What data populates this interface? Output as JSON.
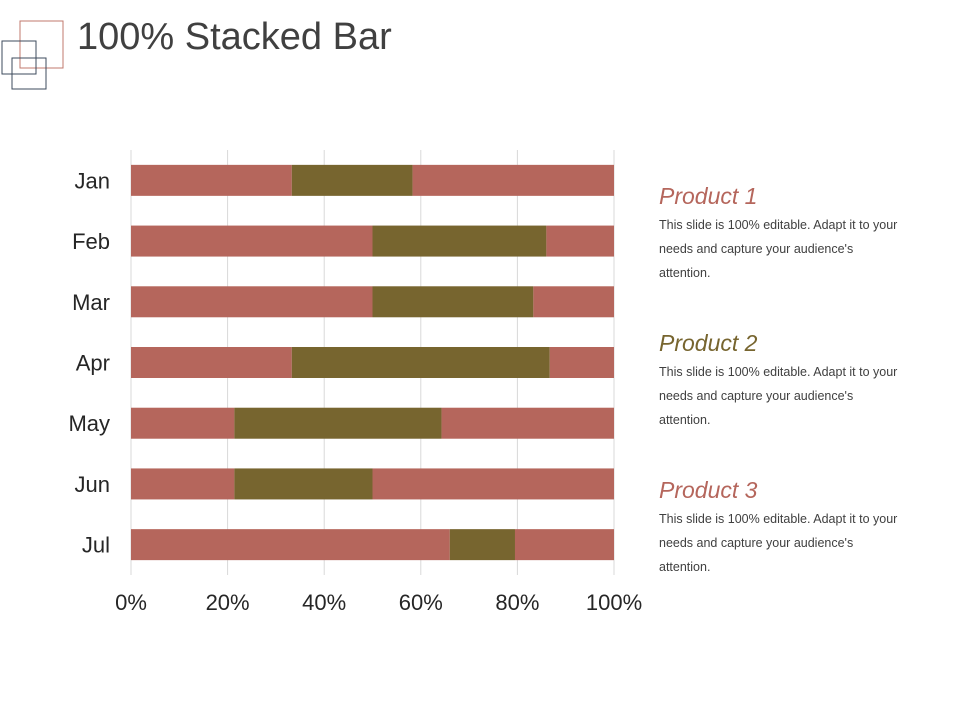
{
  "slide": {
    "title": "100% Stacked Bar"
  },
  "colors": {
    "segment_a": "#B5665C",
    "segment_b": "#77652F",
    "product_1": "#B5665C",
    "product_2": "#77652F",
    "product_3": "#B5665C",
    "grid": "#D9D9D9",
    "logo_square_1": "#C0786E",
    "logo_square_2": "#3E4B5C"
  },
  "legend": [
    {
      "title": "Product 1",
      "description": "This slide is 100% editable. Adapt it to your needs and capture your audience's attention."
    },
    {
      "title": "Product 2",
      "description": "This slide is 100% editable. Adapt it to your needs and capture your audience's attention."
    },
    {
      "title": "Product 3",
      "description": "This slide is 100% editable. Adapt it to your needs and capture your audience's attention."
    }
  ],
  "chart_data": {
    "type": "bar",
    "orientation": "horizontal",
    "stacking": "percent",
    "title": "",
    "categories": [
      "Jan",
      "Feb",
      "Mar",
      "Apr",
      "May",
      "Jun",
      "Jul"
    ],
    "series": [
      {
        "values": [
          33.3,
          50.0,
          50.0,
          33.3,
          21.4,
          21.4,
          66.0
        ]
      },
      {
        "values": [
          25.0,
          36.0,
          33.3,
          53.4,
          42.9,
          28.6,
          13.5
        ]
      },
      {
        "values": [
          41.7,
          14.0,
          16.7,
          13.3,
          35.7,
          50.0,
          20.5
        ]
      }
    ],
    "x_ticks": [
      "0%",
      "20%",
      "40%",
      "60%",
      "80%",
      "100%"
    ],
    "xlim": [
      0,
      100
    ],
    "grid": "vertical",
    "legend": "none"
  }
}
